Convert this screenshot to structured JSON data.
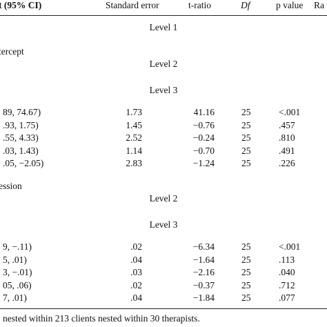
{
  "header": [
    "t (95% CI)",
    "Standard error",
    "t-ratio",
    "Df",
    "p value",
    "Ra"
  ],
  "level1": "Level 1",
  "blocks": [
    {
      "label": "tercept",
      "levels": [
        "Level 2",
        "Level 3"
      ],
      "rows": [
        [
          "89, 74.67)",
          "1.73",
          "41.16",
          "25",
          "<.001"
        ],
        [
          ".93, 1.75)",
          "1.45",
          "−0.76",
          "25",
          ".457"
        ],
        [
          ".55, 4.33)",
          "2.52",
          "−0.24",
          "25",
          ".810"
        ],
        [
          ".03, 1.43)",
          "1.14",
          "−0.70",
          "25",
          ".491"
        ],
        [
          ".05, −2.05)",
          "2.83",
          "−1.24",
          "25",
          ".226"
        ]
      ]
    },
    {
      "label": "ession",
      "levels": [
        "Level 2",
        "Level 3"
      ],
      "rows": [
        [
          "9, −.11)",
          ".02",
          "−6.34",
          "25",
          "<.001"
        ],
        [
          "5, .01)",
          ".04",
          "−1.64",
          "25",
          ".113"
        ],
        [
          "3, −.01)",
          ".03",
          "−2.16",
          "25",
          ".040"
        ],
        [
          "05, .06)",
          ".02",
          "−0.37",
          "25",
          ".712"
        ],
        [
          "7, .01)",
          ".04",
          "−1.84",
          "25",
          ".077"
        ]
      ]
    }
  ],
  "footnote": "nested within 213 clients nested within 30 therapists."
}
